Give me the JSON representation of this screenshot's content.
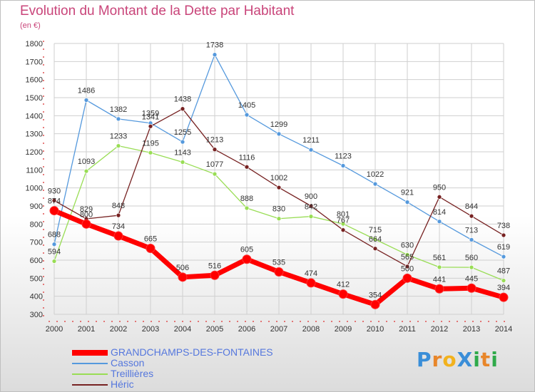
{
  "title": "Evolution du Montant de la Dette par Habitant",
  "unit": "(en €)",
  "logo": {
    "text": "ProXiti",
    "letters": [
      {
        "ch": "P",
        "color": "#3a8ed8"
      },
      {
        "ch": "r",
        "color": "#e8862a"
      },
      {
        "ch": "o",
        "color": "#f2b21e"
      },
      {
        "ch": "X",
        "color": "#3a8ed8"
      },
      {
        "ch": "i",
        "color": "#2faa4a"
      },
      {
        "ch": "t",
        "color": "#e8862a"
      },
      {
        "ch": "i",
        "color": "#2faa4a"
      }
    ]
  },
  "chart_data": {
    "type": "line",
    "title": "Evolution du Montant de la Dette par Habitant",
    "ylabel": "(en €)",
    "x": [
      2000,
      2001,
      2002,
      2003,
      2004,
      2005,
      2006,
      2007,
      2008,
      2009,
      2010,
      2011,
      2012,
      2013,
      2014
    ],
    "ylim": [
      300,
      1800
    ],
    "yticks": [
      300,
      400,
      500,
      600,
      700,
      800,
      900,
      1000,
      1100,
      1200,
      1300,
      1400,
      1500,
      1600,
      1700,
      1800
    ],
    "grid": true,
    "legend_position": "bottom-left",
    "series": [
      {
        "name": "GRANDCHAMPS-DES-FONTAINES",
        "color": "#ff0000",
        "values": [
          874,
          800,
          734,
          665,
          506,
          516,
          605,
          535,
          474,
          412,
          354,
          500,
          441,
          445,
          394
        ]
      },
      {
        "name": "Casson",
        "color": "#5599dd",
        "values": [
          688,
          1486,
          1382,
          1359,
          1255,
          1738,
          1405,
          1299,
          1211,
          1123,
          1022,
          921,
          814,
          713,
          619
        ]
      },
      {
        "name": "Treillières",
        "color": "#99dd55",
        "values": [
          594,
          1093,
          1233,
          1195,
          1143,
          1077,
          888,
          830,
          842,
          801,
          715,
          630,
          561,
          560,
          487
        ]
      },
      {
        "name": "Héric",
        "color": "#772222",
        "values": [
          930,
          829,
          848,
          1341,
          1438,
          1213,
          1116,
          1002,
          900,
          767,
          664,
          565,
          950,
          844,
          738
        ]
      }
    ]
  }
}
